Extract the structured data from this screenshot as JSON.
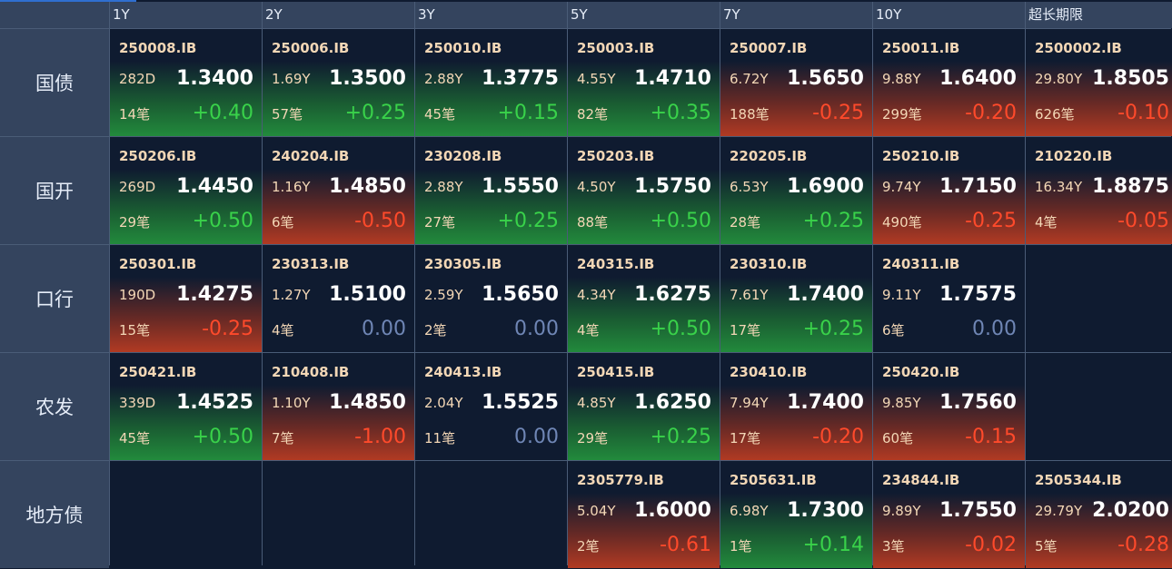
{
  "columns": [
    "1Y",
    "2Y",
    "3Y",
    "5Y",
    "7Y",
    "10Y",
    "超长期限"
  ],
  "rows": [
    {
      "label": "国债",
      "cells": [
        {
          "code": "250008.IB",
          "term": "282D",
          "yield": "1.3400",
          "count": "14笔",
          "change": "+0.40",
          "trend": "up"
        },
        {
          "code": "250006.IB",
          "term": "1.69Y",
          "yield": "1.3500",
          "count": "57笔",
          "change": "+0.25",
          "trend": "up"
        },
        {
          "code": "250010.IB",
          "term": "2.88Y",
          "yield": "1.3775",
          "count": "45笔",
          "change": "+0.15",
          "trend": "up"
        },
        {
          "code": "250003.IB",
          "term": "4.55Y",
          "yield": "1.4710",
          "count": "82笔",
          "change": "+0.35",
          "trend": "up"
        },
        {
          "code": "250007.IB",
          "term": "6.72Y",
          "yield": "1.5650",
          "count": "188笔",
          "change": "-0.25",
          "trend": "down"
        },
        {
          "code": "250011.IB",
          "term": "9.88Y",
          "yield": "1.6400",
          "count": "299笔",
          "change": "-0.20",
          "trend": "down"
        },
        {
          "code": "2500002.IB",
          "term": "29.80Y",
          "yield": "1.8505",
          "count": "626笔",
          "change": "-0.10",
          "trend": "down"
        }
      ]
    },
    {
      "label": "国开",
      "cells": [
        {
          "code": "250206.IB",
          "term": "269D",
          "yield": "1.4450",
          "count": "29笔",
          "change": "+0.50",
          "trend": "up"
        },
        {
          "code": "240204.IB",
          "term": "1.16Y",
          "yield": "1.4850",
          "count": "6笔",
          "change": "-0.50",
          "trend": "down"
        },
        {
          "code": "230208.IB",
          "term": "2.88Y",
          "yield": "1.5550",
          "count": "27笔",
          "change": "+0.25",
          "trend": "up"
        },
        {
          "code": "250203.IB",
          "term": "4.50Y",
          "yield": "1.5750",
          "count": "88笔",
          "change": "+0.50",
          "trend": "up"
        },
        {
          "code": "220205.IB",
          "term": "6.53Y",
          "yield": "1.6900",
          "count": "28笔",
          "change": "+0.25",
          "trend": "up"
        },
        {
          "code": "250210.IB",
          "term": "9.74Y",
          "yield": "1.7150",
          "count": "490笔",
          "change": "-0.25",
          "trend": "down"
        },
        {
          "code": "210220.IB",
          "term": "16.34Y",
          "yield": "1.8875",
          "count": "4笔",
          "change": "-0.05",
          "trend": "down"
        }
      ]
    },
    {
      "label": "口行",
      "cells": [
        {
          "code": "250301.IB",
          "term": "190D",
          "yield": "1.4275",
          "count": "15笔",
          "change": "-0.25",
          "trend": "down"
        },
        {
          "code": "230313.IB",
          "term": "1.27Y",
          "yield": "1.5100",
          "count": "4笔",
          "change": "0.00",
          "trend": "flat"
        },
        {
          "code": "230305.IB",
          "term": "2.59Y",
          "yield": "1.5650",
          "count": "2笔",
          "change": "0.00",
          "trend": "flat"
        },
        {
          "code": "240315.IB",
          "term": "4.34Y",
          "yield": "1.6275",
          "count": "4笔",
          "change": "+0.50",
          "trend": "up"
        },
        {
          "code": "230310.IB",
          "term": "7.61Y",
          "yield": "1.7400",
          "count": "17笔",
          "change": "+0.25",
          "trend": "up"
        },
        {
          "code": "240311.IB",
          "term": "9.11Y",
          "yield": "1.7575",
          "count": "6笔",
          "change": "0.00",
          "trend": "flat"
        },
        null
      ]
    },
    {
      "label": "农发",
      "cells": [
        {
          "code": "250421.IB",
          "term": "339D",
          "yield": "1.4525",
          "count": "45笔",
          "change": "+0.50",
          "trend": "up"
        },
        {
          "code": "210408.IB",
          "term": "1.10Y",
          "yield": "1.4850",
          "count": "7笔",
          "change": "-1.00",
          "trend": "down"
        },
        {
          "code": "240413.IB",
          "term": "2.04Y",
          "yield": "1.5525",
          "count": "11笔",
          "change": "0.00",
          "trend": "flat"
        },
        {
          "code": "250415.IB",
          "term": "4.85Y",
          "yield": "1.6250",
          "count": "29笔",
          "change": "+0.25",
          "trend": "up"
        },
        {
          "code": "230410.IB",
          "term": "7.94Y",
          "yield": "1.7400",
          "count": "17笔",
          "change": "-0.20",
          "trend": "down"
        },
        {
          "code": "250420.IB",
          "term": "9.85Y",
          "yield": "1.7560",
          "count": "60笔",
          "change": "-0.15",
          "trend": "down"
        },
        null
      ]
    },
    {
      "label": "地方债",
      "cells": [
        null,
        null,
        null,
        {
          "code": "2305779.IB",
          "term": "5.04Y",
          "yield": "1.6000",
          "count": "2笔",
          "change": "-0.61",
          "trend": "down"
        },
        {
          "code": "2505631.IB",
          "term": "6.98Y",
          "yield": "1.7300",
          "count": "1笔",
          "change": "+0.14",
          "trend": "up"
        },
        {
          "code": "234844.IB",
          "term": "9.89Y",
          "yield": "1.7550",
          "count": "3笔",
          "change": "-0.02",
          "trend": "down"
        },
        {
          "code": "2505344.IB",
          "term": "29.79Y",
          "yield": "2.0200",
          "count": "5笔",
          "change": "-0.28",
          "trend": "down"
        }
      ]
    }
  ],
  "colors": {
    "background": "#0f1b30",
    "header": "#34445e",
    "up": "#39d24a",
    "down": "#ff4a2b",
    "flat": "#6f86b5",
    "label": "#f3d7b6"
  }
}
